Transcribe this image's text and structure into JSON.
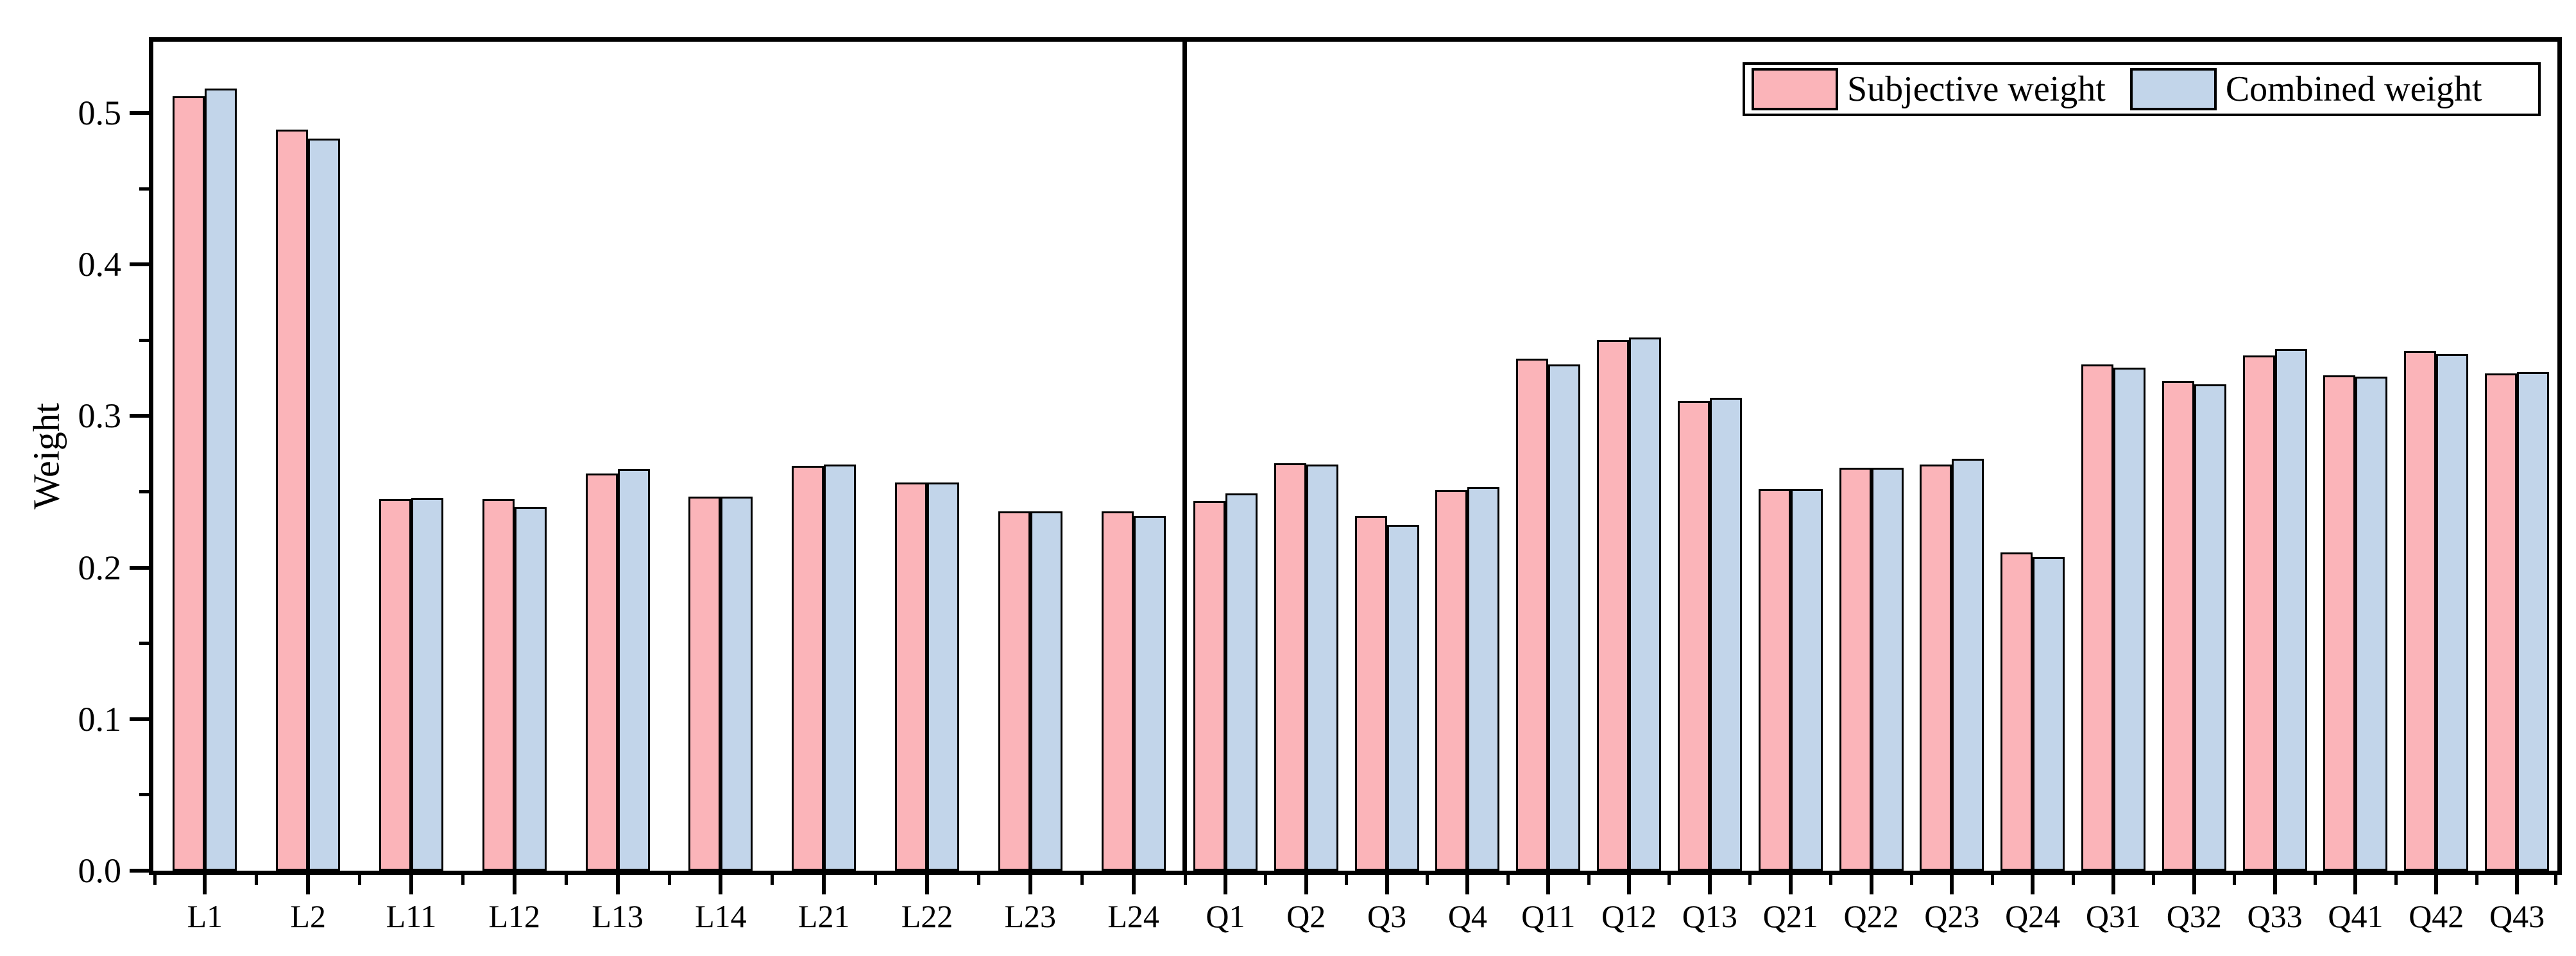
{
  "chart_data": {
    "type": "bar",
    "title": "",
    "xlabel": "",
    "ylabel": "Weight",
    "ylim": [
      0,
      0.547
    ],
    "y_tick_labels": [
      "0.0",
      "0.1",
      "0.2",
      "0.3",
      "0.4",
      "0.5"
    ],
    "y_minor_step": 0.05,
    "grid": false,
    "legend_position": "top-right",
    "categories": [
      "L1",
      "L2",
      "L11",
      "L12",
      "L13",
      "L14",
      "L21",
      "L22",
      "L23",
      "L24",
      "Q1",
      "Q2",
      "Q3",
      "Q4",
      "Q11",
      "Q12",
      "Q13",
      "Q21",
      "Q22",
      "Q23",
      "Q24",
      "Q31",
      "Q32",
      "Q33",
      "Q41",
      "Q42",
      "Q43"
    ],
    "sections": [
      {
        "name": "L",
        "count": 10
      },
      {
        "name": "Q",
        "count": 17
      }
    ],
    "series": [
      {
        "name": "Subjective weight",
        "color": "#FBB4B9",
        "values": [
          0.511,
          0.489,
          0.245,
          0.245,
          0.262,
          0.247,
          0.267,
          0.256,
          0.237,
          0.237,
          0.244,
          0.269,
          0.234,
          0.251,
          0.338,
          0.35,
          0.31,
          0.252,
          0.266,
          0.268,
          0.21,
          0.334,
          0.323,
          0.34,
          0.327,
          0.343,
          0.328
        ]
      },
      {
        "name": "Combined weight",
        "color": "#C2D5EA",
        "values": [
          0.516,
          0.483,
          0.246,
          0.24,
          0.265,
          0.247,
          0.268,
          0.256,
          0.237,
          0.234,
          0.249,
          0.268,
          0.228,
          0.253,
          0.334,
          0.352,
          0.312,
          0.252,
          0.266,
          0.272,
          0.207,
          0.332,
          0.321,
          0.344,
          0.326,
          0.341,
          0.329
        ]
      }
    ],
    "colors": {
      "bar_edge": "#000000",
      "axis": "#000000",
      "background": "#ffffff"
    }
  }
}
